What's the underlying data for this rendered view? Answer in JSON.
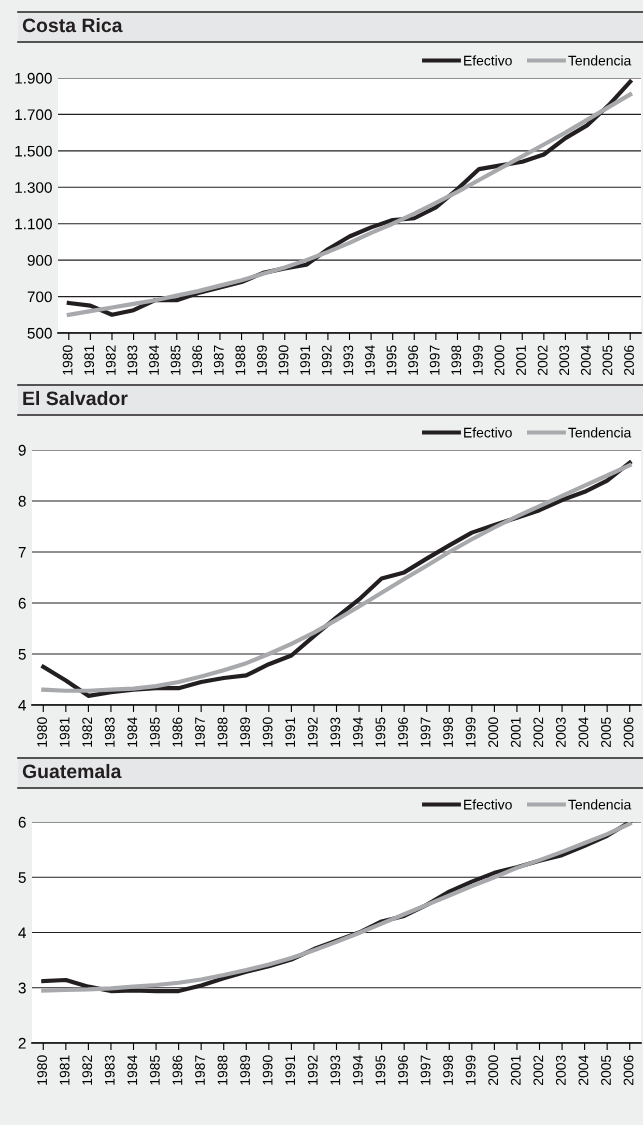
{
  "chart_data": [
    {
      "type": "line",
      "title": "Costa Rica",
      "categories": [
        "1980",
        "1981",
        "1982",
        "1983",
        "1984",
        "1985",
        "1986",
        "1987",
        "1988",
        "1989",
        "1990",
        "1991",
        "1992",
        "1993",
        "1994",
        "1995",
        "1996",
        "1997",
        "1998",
        "1999",
        "2000",
        "2001",
        "2002",
        "2003",
        "2004",
        "2005",
        "2006"
      ],
      "series": [
        {
          "name": "Efectivo",
          "color": "#231f20",
          "values": [
            665,
            650,
            600,
            625,
            680,
            680,
            720,
            750,
            780,
            830,
            855,
            875,
            960,
            1030,
            1080,
            1120,
            1130,
            1190,
            1290,
            1400,
            1420,
            1440,
            1480,
            1570,
            1640,
            1750,
            1880
          ]
        },
        {
          "name": "Tendencia",
          "color": "#a7a9ac",
          "values": [
            600,
            620,
            640,
            660,
            680,
            705,
            730,
            760,
            790,
            825,
            860,
            900,
            945,
            995,
            1050,
            1100,
            1155,
            1215,
            1275,
            1340,
            1405,
            1470,
            1535,
            1600,
            1670,
            1740,
            1810
          ]
        }
      ],
      "ylim": [
        500,
        1900
      ],
      "yticks": [
        500,
        700,
        900,
        {
          "value": 1100,
          "label": "1.100"
        },
        {
          "value": 1300,
          "label": "1.300"
        },
        {
          "value": 1500,
          "label": "1.500"
        },
        {
          "value": 1700,
          "label": "1.700"
        },
        {
          "value": 1900,
          "label": "1.900"
        }
      ],
      "grid": "y",
      "legend": "top right",
      "marker": "none",
      "line_style": "solid"
    },
    {
      "type": "line",
      "title": "El Salvador",
      "categories": [
        "1980",
        "1981",
        "1982",
        "1983",
        "1984",
        "1985",
        "1986",
        "1987",
        "1988",
        "1989",
        "1990",
        "1991",
        "1992",
        "1993",
        "1994",
        "1995",
        "1996",
        "1997",
        "1998",
        "1999",
        "2000",
        "2001",
        "2002",
        "2003",
        "2004",
        "2005",
        "2006"
      ],
      "series": [
        {
          "name": "Efectivo",
          "color": "#231f20",
          "values": [
            4.75,
            4.48,
            4.18,
            4.25,
            4.3,
            4.33,
            4.33,
            4.45,
            4.53,
            4.58,
            4.8,
            4.97,
            5.35,
            5.72,
            6.07,
            6.48,
            6.6,
            6.87,
            7.13,
            7.38,
            7.53,
            7.67,
            7.82,
            8.02,
            8.18,
            8.4,
            8.75
          ]
        },
        {
          "name": "Tendencia",
          "color": "#a7a9ac",
          "values": [
            4.3,
            4.28,
            4.28,
            4.3,
            4.32,
            4.37,
            4.45,
            4.56,
            4.68,
            4.82,
            5.0,
            5.2,
            5.42,
            5.67,
            5.93,
            6.2,
            6.47,
            6.73,
            7.0,
            7.25,
            7.48,
            7.7,
            7.9,
            8.1,
            8.3,
            8.5,
            8.7
          ]
        }
      ],
      "ylim": [
        4,
        9
      ],
      "yticks": [
        4,
        5,
        6,
        7,
        8,
        9
      ],
      "grid": "y",
      "legend": "top right",
      "marker": "none",
      "line_style": "solid"
    },
    {
      "type": "line",
      "title": "Guatemala",
      "categories": [
        "1980",
        "1981",
        "1982",
        "1983",
        "1984",
        "1985",
        "1986",
        "1987",
        "1988",
        "1989",
        "1990",
        "1991",
        "1992",
        "1993",
        "1994",
        "1995",
        "1996",
        "1997",
        "1998",
        "1999",
        "2000",
        "2001",
        "2002",
        "2003",
        "2004",
        "2005",
        "2006"
      ],
      "series": [
        {
          "name": "Efectivo",
          "color": "#231f20",
          "values": [
            3.12,
            3.14,
            3.02,
            2.94,
            2.95,
            2.94,
            2.94,
            3.04,
            3.17,
            3.29,
            3.39,
            3.51,
            3.7,
            3.85,
            4.0,
            4.2,
            4.3,
            4.5,
            4.74,
            4.92,
            5.08,
            5.18,
            5.3,
            5.4,
            5.57,
            5.75,
            6.0
          ]
        },
        {
          "name": "Tendencia",
          "color": "#a7a9ac",
          "values": [
            2.95,
            2.96,
            2.97,
            2.99,
            3.02,
            3.05,
            3.09,
            3.15,
            3.23,
            3.32,
            3.42,
            3.54,
            3.68,
            3.83,
            3.99,
            4.16,
            4.33,
            4.5,
            4.67,
            4.84,
            5.0,
            5.17,
            5.31,
            5.46,
            5.62,
            5.78,
            5.97
          ]
        }
      ],
      "ylim": [
        2,
        6
      ],
      "yticks": [
        2,
        3,
        4,
        5,
        6
      ],
      "grid": "y",
      "legend": "top right",
      "marker": "none",
      "line_style": "solid"
    }
  ]
}
